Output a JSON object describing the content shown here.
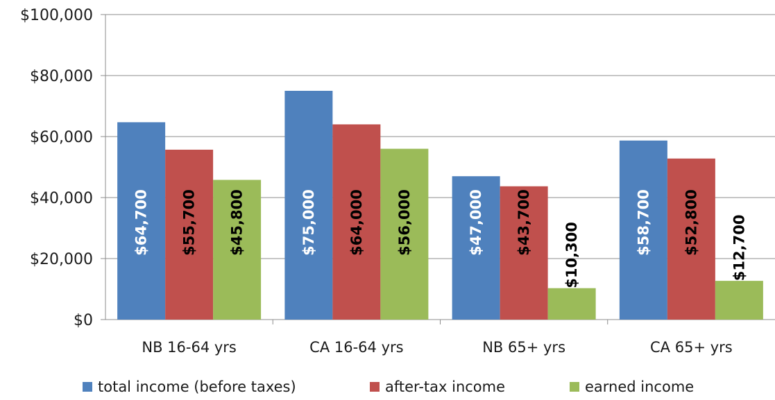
{
  "chart_data": {
    "type": "bar",
    "categories": [
      "NB 16-64 yrs",
      "CA 16-64 yrs",
      "NB 65+ yrs",
      "CA 65+ yrs"
    ],
    "series": [
      {
        "name": "total income (before taxes)",
        "color": "#4F81BD",
        "values": [
          64700,
          75000,
          47000,
          58700
        ],
        "labels": [
          "$64,700",
          "$75,000",
          "$47,000",
          "$58,700"
        ],
        "label_colors": [
          "#ffffff",
          "#ffffff",
          "#ffffff",
          "#ffffff"
        ]
      },
      {
        "name": "after-tax income",
        "color": "#C0504D",
        "values": [
          55700,
          64000,
          43700,
          52800
        ],
        "labels": [
          "$55,700",
          "$64,000",
          "$43,700",
          "$52,800"
        ],
        "label_colors": [
          "#000000",
          "#000000",
          "#000000",
          "#000000"
        ]
      },
      {
        "name": "earned income",
        "color": "#9BBB59",
        "values": [
          45800,
          56000,
          10300,
          12700
        ],
        "labels": [
          "$45,800",
          "$56,000",
          "$10,300",
          "$12,700"
        ],
        "label_colors": [
          "#000000",
          "#000000",
          "#000000",
          "#000000"
        ]
      }
    ],
    "y_ticks": [
      "$0",
      "$20,000",
      "$40,000",
      "$60,000",
      "$80,000",
      "$100,000"
    ],
    "ylim": [
      0,
      100000
    ],
    "grid": true,
    "legend_position": "bottom"
  }
}
